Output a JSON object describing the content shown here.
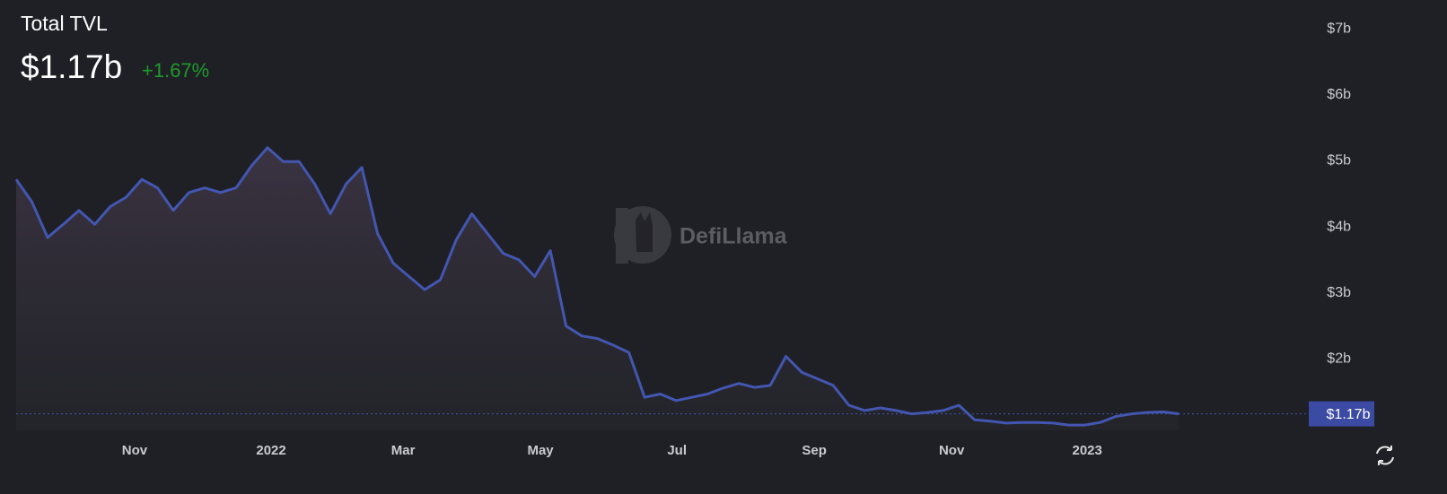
{
  "header": {
    "title": "Total TVL",
    "value": "$1.17b",
    "change": "+1.67%"
  },
  "watermark": "DefiLlama",
  "chart_data": {
    "type": "area",
    "color": "#4356b0",
    "values": [
      4.72,
      4.38,
      3.84,
      4.04,
      4.25,
      4.04,
      4.31,
      4.45,
      4.72,
      4.59,
      4.25,
      4.52,
      4.59,
      4.52,
      4.59,
      4.93,
      5.2,
      4.99,
      4.99,
      4.65,
      4.2,
      4.65,
      4.9,
      3.9,
      3.45,
      3.25,
      3.05,
      3.2,
      3.8,
      4.2,
      3.9,
      3.6,
      3.5,
      3.25,
      3.64,
      2.5,
      2.35,
      2.31,
      2.21,
      2.1,
      1.42,
      1.47,
      1.37,
      1.42,
      1.47,
      1.56,
      1.63,
      1.57,
      1.6,
      2.04,
      1.8,
      1.7,
      1.6,
      1.3,
      1.22,
      1.26,
      1.22,
      1.17,
      1.19,
      1.22,
      1.3,
      1.08,
      1.06,
      1.03,
      1.04,
      1.04,
      1.03,
      1.0,
      1.0,
      1.04,
      1.13,
      1.17,
      1.19,
      1.2,
      1.17
    ],
    "xlim": [
      0,
      82.1
    ],
    "xticks": [
      {
        "value": 7.54,
        "label": "Nov"
      },
      {
        "value": 16.23,
        "label": "2022"
      },
      {
        "value": 24.63,
        "label": "Mar"
      },
      {
        "value": 33.37,
        "label": "May"
      },
      {
        "value": 42.06,
        "label": "Jul"
      },
      {
        "value": 50.8,
        "label": "Sep"
      },
      {
        "value": 59.54,
        "label": "Nov"
      },
      {
        "value": 68.17,
        "label": "2023"
      }
    ],
    "ylim": [
      0.92,
      7.3
    ],
    "yticks": [
      {
        "value": 2,
        "label": "$2b"
      },
      {
        "value": 3,
        "label": "$3b"
      },
      {
        "value": 4,
        "label": "$4b"
      },
      {
        "value": 5,
        "label": "$5b"
      },
      {
        "value": 6,
        "label": "$6b"
      },
      {
        "value": 7,
        "label": "$7b"
      }
    ]
  }
}
